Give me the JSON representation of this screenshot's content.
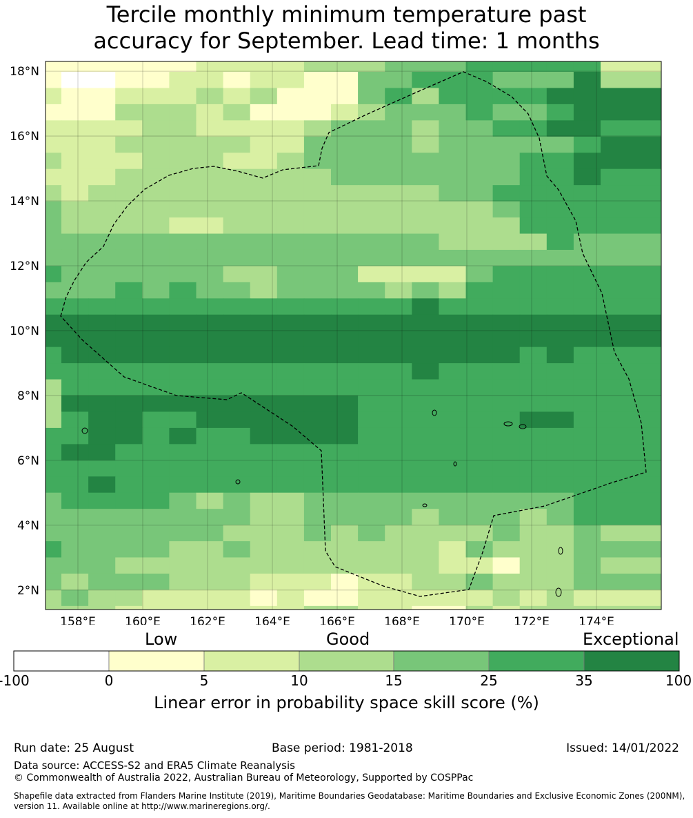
{
  "title_line1": "Tercile monthly minimum temperature past",
  "title_line2": "accuracy for September. Lead time: 1 months",
  "map": {
    "lon_range": [
      157.0,
      176.0
    ],
    "lat_range": [
      1.4,
      18.3
    ],
    "lat_ticks": [
      {
        "value": 18,
        "label": "18°N"
      },
      {
        "value": 16,
        "label": "16°N"
      },
      {
        "value": 14,
        "label": "14°N"
      },
      {
        "value": 12,
        "label": "12°N"
      },
      {
        "value": 10,
        "label": "10°N"
      },
      {
        "value": 8,
        "label": "8°N"
      },
      {
        "value": 6,
        "label": "6°N"
      },
      {
        "value": 4,
        "label": "4°N"
      },
      {
        "value": 2,
        "label": "2°N"
      }
    ],
    "lon_ticks": [
      {
        "value": 158,
        "label": "158°E"
      },
      {
        "value": 160,
        "label": "160°E"
      },
      {
        "value": 162,
        "label": "162°E"
      },
      {
        "value": 164,
        "label": "164°E"
      },
      {
        "value": 166,
        "label": "166°E"
      },
      {
        "value": 168,
        "label": "168°E"
      },
      {
        "value": 170,
        "label": "170°E"
      },
      {
        "value": 172,
        "label": "172°E"
      },
      {
        "value": 174,
        "label": "174°E"
      }
    ],
    "grid_rows_top_to_bottom": [
      "1111112222333444555552",
      "1001122122114455544463",
      "2112223231114535555666",
      "1113332311123444544566",
      "2222332222344434455665",
      "2223333322444434444456",
      "3222333223444444445566",
      "2223333333344444445565",
      "3233333333333334455555",
      "4333333333333333345555",
      "4333322333333333335555",
      "4444444444444443333544",
      "4444444444444444444444",
      "5444444334442222455555",
      "4445454434444343555555",
      "5555555555555565555555",
      "6666666666666666666666",
      "6666666666666666666666",
      "5666666666666666665655",
      "5555555555555565555555",
      "3555555555555555555555",
      "3666666666665555555555",
      "3566556666665555556655",
      "5566565566665555555555",
      "5665555555555555555555",
      "5555555555555555555555",
      "5565555555555555555555",
      "4555543433444444444455",
      "4444444433444434443455",
      "4444444333434333343343",
      "5444433433333332433344",
      "4443333333333332213343",
      "4344433322212233433344",
      "3433222212112222232322",
      "3332222222332211323333",
      "1111121111122212213334"
    ]
  },
  "colorbar": {
    "category_labels": [
      "Low",
      "Good",
      "Exceptional"
    ],
    "ticks": [
      "-100",
      "0",
      "5",
      "10",
      "15",
      "25",
      "35",
      "100"
    ],
    "colors": [
      "#ffffff",
      "#ffffcc",
      "#d9f0a3",
      "#addd8e",
      "#78c679",
      "#41ab5d",
      "#238443"
    ],
    "axis_label": "Linear error in probability space skill score (%)"
  },
  "footer": {
    "run_date": "Run date: 25 August",
    "base_period": "Base period: 1981-2018",
    "issued": "Issued: 14/01/2022",
    "data_source": "Data source: ACCESS-S2 and ERA5 Climate Reanalysis",
    "copyright": "© Commonwealth of Australia 2022, Australian Bureau of Meteorology, Supported by COSPPac",
    "shapefile_line1": "Shapefile data extracted from Flanders Marine Institute (2019), Maritime Boundaries Geodatabase: Maritime Boundaries and Exclusive Economic Zones (200NM),",
    "shapefile_line2": "version 11. Available online at http://www.marineregions.org/."
  }
}
